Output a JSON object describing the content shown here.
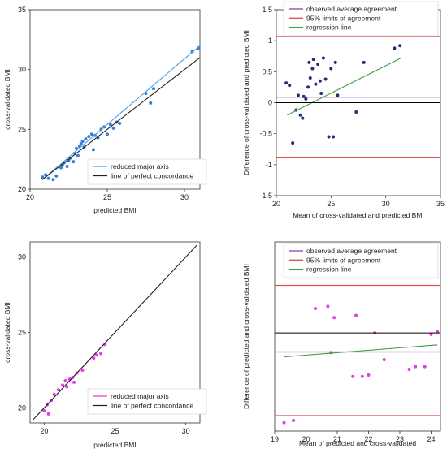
{
  "chart_data": [
    {
      "type": "scatter",
      "xlabel": "predicted BMI",
      "ylabel": "cross-validated BMI",
      "xlim": [
        20,
        31
      ],
      "ylim": [
        20,
        35
      ],
      "xticks": [
        20,
        25,
        30
      ],
      "yticks": [
        20,
        25,
        30,
        35
      ],
      "grid": false,
      "legend_position": "bottom-right",
      "colors": {
        "points": "#3a7fd5",
        "fit": "#4aa0e0",
        "identity": "#222222"
      },
      "series": [
        {
          "name": "",
          "kind": "points",
          "x": [
            20.8,
            21.0,
            21.2,
            21.5,
            21.7,
            22.0,
            22.1,
            22.2,
            22.4,
            22.5,
            22.6,
            22.8,
            22.9,
            23.0,
            23.1,
            23.2,
            23.3,
            23.4,
            23.5,
            23.6,
            23.8,
            24.0,
            24.1,
            24.2,
            24.4,
            24.6,
            24.8,
            25.0,
            25.2,
            25.4,
            25.6,
            25.8,
            27.5,
            27.8,
            28.0,
            30.5,
            30.9
          ],
          "y": [
            21.0,
            21.2,
            20.9,
            20.8,
            21.1,
            21.8,
            22.0,
            22.2,
            21.9,
            22.4,
            22.6,
            22.3,
            23.0,
            23.4,
            22.8,
            23.6,
            23.8,
            24.0,
            23.5,
            24.2,
            24.4,
            24.6,
            23.3,
            24.5,
            24.3,
            25.0,
            25.2,
            24.6,
            25.4,
            25.1,
            25.6,
            25.5,
            28.0,
            27.2,
            28.4,
            31.5,
            31.8
          ]
        },
        {
          "name": "reduced major axis",
          "kind": "line",
          "x": [
            20.8,
            31.0
          ],
          "y": [
            20.8,
            32.0
          ]
        },
        {
          "name": "line of perfect concordance",
          "kind": "line",
          "x": [
            20.8,
            31.0
          ],
          "y": [
            20.8,
            31.0
          ]
        }
      ]
    },
    {
      "type": "scatter",
      "xlabel": "Mean of cross-validated and predicted BMI",
      "ylabel": "Difference of cross-validated and predicted BMI",
      "xlim": [
        20,
        35
      ],
      "ylim": [
        -1.5,
        1.5
      ],
      "xticks": [
        20,
        25,
        30,
        35
      ],
      "yticks": [
        -1.5,
        -1,
        -0.5,
        0,
        0.5,
        1,
        1.5
      ],
      "grid": false,
      "legend_position": "top",
      "colors": {
        "points": "#2a2a7a",
        "mean": "#8a3ab0",
        "limits": "#e05050",
        "regression": "#3aa03a",
        "zero": "#000000"
      },
      "series": [
        {
          "name": "",
          "kind": "points",
          "x": [
            20.9,
            21.2,
            21.5,
            21.8,
            22.0,
            22.2,
            22.4,
            22.5,
            22.7,
            22.9,
            23.0,
            23.1,
            23.3,
            23.4,
            23.6,
            23.8,
            24.0,
            24.1,
            24.3,
            24.5,
            24.8,
            25.0,
            25.2,
            25.4,
            25.6,
            27.3,
            28.0,
            30.8,
            31.3
          ],
          "x_note": "",
          "y": [
            0.32,
            0.28,
            -0.65,
            -0.12,
            0.12,
            -0.2,
            -0.25,
            0.1,
            0.06,
            0.25,
            0.65,
            0.4,
            0.55,
            0.7,
            0.3,
            0.62,
            0.35,
            0.15,
            0.72,
            0.38,
            -0.55,
            0.55,
            -0.55,
            0.65,
            0.12,
            -0.15,
            0.65,
            0.88,
            0.92
          ]
        },
        {
          "name": "observed average agreement",
          "kind": "hline",
          "y": 0.09
        },
        {
          "name": "95% limits of agreement",
          "kind": "hlines",
          "y": [
            1.07,
            -0.89
          ]
        },
        {
          "name": "regression line",
          "kind": "line",
          "x": [
            21.0,
            31.4
          ],
          "y": [
            -0.2,
            0.72
          ]
        }
      ]
    },
    {
      "type": "scatter",
      "xlabel": "predicted BMI",
      "ylabel": "cross-validated BMI",
      "xlim": [
        19,
        31
      ],
      "ylim": [
        19,
        31
      ],
      "xticks": [
        20,
        25,
        30
      ],
      "yticks": [
        20,
        25,
        30
      ],
      "grid": false,
      "legend_position": "bottom-right",
      "colors": {
        "points": "#e040e0",
        "fit": "#e040e0",
        "identity": "#222222"
      },
      "series": [
        {
          "name": "",
          "kind": "points",
          "x": [
            20.0,
            20.2,
            20.5,
            20.7,
            21.0,
            21.3,
            21.5,
            21.8,
            22.0,
            22.3,
            22.7,
            23.5,
            23.7,
            24.0,
            24.3,
            20.3,
            21.6,
            22.1
          ],
          "y": [
            19.8,
            20.2,
            20.5,
            20.9,
            21.2,
            21.5,
            21.8,
            21.9,
            22.0,
            22.3,
            22.5,
            23.3,
            23.5,
            23.6,
            24.2,
            19.6,
            21.4,
            21.7
          ]
        },
        {
          "name": "reduced major axis",
          "kind": "line",
          "x": [
            19.8,
            24.5
          ],
          "y": [
            19.8,
            24.5
          ]
        },
        {
          "name": "line of perfect concordance",
          "kind": "line",
          "x": [
            19.2,
            30.8
          ],
          "y": [
            19.2,
            30.8
          ]
        }
      ]
    },
    {
      "type": "scatter",
      "xlabel": "Mean of predicted and cross-validated",
      "ylabel": "Difference of predicted and cross-validated BMI",
      "xlim": [
        19,
        24.3
      ],
      "ylim": [
        -1.4,
        1.3
      ],
      "xticks": [
        19,
        20,
        21,
        22,
        23,
        24
      ],
      "yticks": [],
      "grid": false,
      "legend_position": "top",
      "colors": {
        "points": "#e040e0",
        "mean": "#8a3ab0",
        "limits": "#e05050",
        "regression": "#3aa03a",
        "zero": "#000000"
      },
      "series": [
        {
          "name": "",
          "kind": "points",
          "x": [
            19.3,
            19.6,
            20.3,
            20.7,
            20.9,
            21.6,
            21.8,
            22.0,
            22.2,
            22.5,
            23.3,
            23.5,
            23.8,
            24.0,
            24.2,
            20.8,
            21.5
          ],
          "y": [
            -1.28,
            -1.25,
            0.35,
            0.38,
            0.22,
            0.25,
            -0.62,
            -0.6,
            0.0,
            -0.38,
            -0.52,
            -0.48,
            -0.48,
            -0.02,
            0.02,
            -0.28,
            -0.62
          ]
        },
        {
          "name": "observed average agreement",
          "kind": "hline",
          "y": -0.27
        },
        {
          "name": "95% limits of agreement",
          "kind": "hlines",
          "y": [
            0.68,
            -1.18
          ]
        },
        {
          "name": "regression line",
          "kind": "line",
          "x": [
            19.3,
            24.2
          ],
          "y": [
            -0.34,
            -0.17
          ]
        }
      ]
    }
  ]
}
